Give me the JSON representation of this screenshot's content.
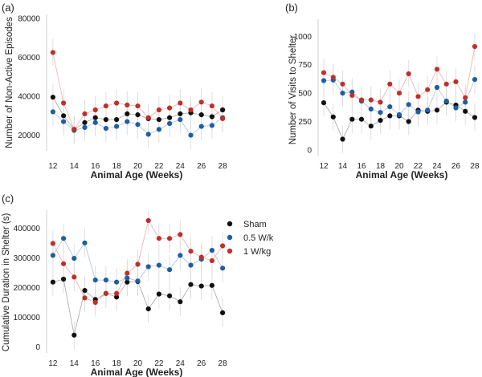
{
  "legend": [
    {
      "name": "Sham",
      "color": "#111111"
    },
    {
      "name": "0.5 W/k",
      "color": "#1f5fa0"
    },
    {
      "name": "1 W/kg",
      "color": "#c0302a"
    }
  ],
  "chart_data": [
    {
      "type": "scatter",
      "panel_label": "(a)",
      "xlabel": "Animal Age (Weeks)",
      "ylabel": "Number of Non-Active Episodes",
      "x": [
        12,
        13,
        14,
        15,
        16,
        17,
        18,
        19,
        20,
        21,
        22,
        23,
        24,
        25,
        26,
        27,
        28
      ],
      "xticks": [
        12,
        14,
        16,
        18,
        20,
        22,
        24,
        26,
        28
      ],
      "xlim": [
        11.4,
        28.6
      ],
      "ylim": [
        12000,
        82000
      ],
      "yticks": [
        20000,
        40000,
        60000,
        80000
      ],
      "yticklabels": [
        "20000",
        "40000",
        "60000",
        "80000"
      ],
      "grid": false,
      "series": [
        {
          "name": "Sham",
          "color": "#111111",
          "values": [
            39500,
            30000,
            23000,
            26500,
            29000,
            28000,
            28000,
            31000,
            30500,
            28500,
            28000,
            29000,
            31000,
            31500,
            30500,
            29500,
            33000
          ]
        },
        {
          "name": "0.5 W/k",
          "color": "#1f5fa0",
          "values": [
            32000,
            27000,
            22500,
            24000,
            26500,
            23500,
            24500,
            27000,
            25500,
            20500,
            23000,
            26000,
            28000,
            20000,
            24500,
            25000,
            29000
          ]
        },
        {
          "name": "1 W/kg",
          "color": "#c0302a",
          "values": [
            62500,
            36500,
            23000,
            31000,
            33000,
            35000,
            36500,
            35500,
            35000,
            29000,
            33000,
            34000,
            36500,
            33000,
            37000,
            35000,
            28500
          ]
        }
      ]
    },
    {
      "type": "scatter",
      "panel_label": "(b)",
      "xlabel": "Animal Age (Weeks)",
      "ylabel": "Number of Visits to Shelter",
      "x": [
        12,
        13,
        14,
        15,
        16,
        17,
        18,
        19,
        20,
        21,
        22,
        23,
        24,
        25,
        26,
        27,
        28
      ],
      "xticks": [
        12,
        14,
        16,
        18,
        20,
        22,
        24,
        26,
        28
      ],
      "xlim": [
        11.4,
        28.6
      ],
      "ylim": [
        -50,
        1150
      ],
      "yticks": [
        0,
        250,
        500,
        750,
        1000
      ],
      "yticklabels": [
        "0",
        "250",
        "500",
        "750",
        "1000"
      ],
      "grid": false,
      "series": [
        {
          "name": "Sham",
          "color": "#111111",
          "values": [
            415,
            290,
            95,
            270,
            270,
            210,
            260,
            300,
            300,
            250,
            350,
            340,
            350,
            420,
            395,
            340,
            285
          ]
        },
        {
          "name": "0.5 W/k",
          "color": "#1f5fa0",
          "values": [
            610,
            615,
            500,
            510,
            430,
            360,
            330,
            380,
            310,
            400,
            335,
            350,
            550,
            430,
            370,
            420,
            620
          ]
        },
        {
          "name": "1 W/kg",
          "color": "#c0302a",
          "values": [
            680,
            640,
            580,
            480,
            440,
            440,
            420,
            580,
            500,
            670,
            470,
            530,
            710,
            580,
            600,
            460,
            910
          ]
        }
      ]
    },
    {
      "type": "scatter",
      "panel_label": "(c)",
      "xlabel": "Animal Age (Weeks)",
      "ylabel": "Cumulative Duration in Shelter (s)",
      "x": [
        12,
        13,
        14,
        15,
        16,
        17,
        18,
        19,
        20,
        21,
        22,
        23,
        24,
        25,
        26,
        27,
        28
      ],
      "xticks": [
        12,
        14,
        16,
        18,
        20,
        22,
        24,
        26,
        28
      ],
      "xlim": [
        11.4,
        28.6
      ],
      "ylim": [
        -20000,
        460000
      ],
      "yticks": [
        0,
        100000,
        200000,
        300000,
        400000
      ],
      "yticklabels": [
        "0",
        "100000",
        "200000",
        "300000",
        "400000"
      ],
      "grid": false,
      "series": [
        {
          "name": "Sham",
          "color": "#111111",
          "values": [
            218000,
            228000,
            40000,
            190000,
            160000,
            180000,
            168000,
            218000,
            220000,
            128000,
            178000,
            172000,
            152000,
            210000,
            205000,
            207000,
            115000
          ]
        },
        {
          "name": "0.5 W/k",
          "color": "#1f5fa0",
          "values": [
            308000,
            365000,
            298000,
            350000,
            225000,
            225000,
            218000,
            232000,
            222000,
            270000,
            275000,
            260000,
            308000,
            275000,
            295000,
            325000,
            265000
          ]
        },
        {
          "name": "1 W/kg",
          "color": "#c0302a",
          "values": [
            348000,
            280000,
            235000,
            165000,
            150000,
            180000,
            180000,
            248000,
            278000,
            425000,
            365000,
            365000,
            378000,
            322000,
            302000,
            290000,
            340000
          ]
        }
      ]
    }
  ]
}
